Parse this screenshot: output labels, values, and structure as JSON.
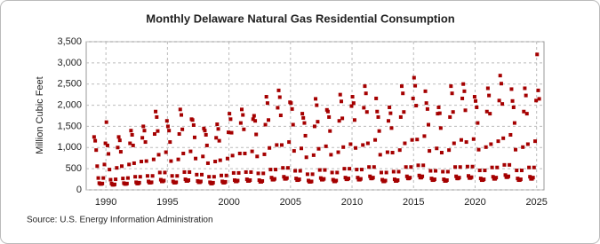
{
  "chart_data": {
    "type": "scatter",
    "title": "Monthly Delaware Natural Gas Residential Consumption",
    "ylabel": "Million Cubic Feet",
    "source": "Source: U.S. Energy Information Administration",
    "color": "#a50000",
    "grid": true,
    "xlim": [
      1988.4,
      2025.6
    ],
    "xticks": [
      1990,
      1995,
      2000,
      2005,
      2010,
      2015,
      2020,
      2025
    ],
    "ylim": [
      0,
      3500
    ],
    "yticks": [
      0,
      500,
      {
        "value": 1000,
        "label": "1,000"
      },
      {
        "value": 1500,
        "label": "1,500"
      },
      {
        "value": 2000,
        "label": "2,000"
      },
      {
        "value": 2500,
        "label": "2,500"
      },
      {
        "value": 3000,
        "label": "3,000"
      },
      {
        "value": 3500,
        "label": "3,500"
      }
    ],
    "x": [
      1989.04,
      1989.13,
      1989.21,
      1989.29,
      1989.38,
      1989.46,
      1989.54,
      1989.63,
      1989.71,
      1989.79,
      1989.88,
      1989.96,
      1990.04,
      1990.13,
      1990.21,
      1990.29,
      1990.38,
      1990.46,
      1990.54,
      1990.63,
      1990.71,
      1990.79,
      1990.88,
      1990.96,
      1991.04,
      1991.13,
      1991.21,
      1991.29,
      1991.38,
      1991.46,
      1991.54,
      1991.63,
      1991.71,
      1991.79,
      1991.88,
      1991.96,
      1992.04,
      1992.13,
      1992.21,
      1992.29,
      1992.38,
      1992.46,
      1992.54,
      1992.63,
      1992.71,
      1992.79,
      1992.88,
      1992.96,
      1993.04,
      1993.13,
      1993.21,
      1993.29,
      1993.38,
      1993.46,
      1993.54,
      1993.63,
      1993.71,
      1993.79,
      1993.88,
      1993.96,
      1994.04,
      1994.13,
      1994.21,
      1994.29,
      1994.38,
      1994.46,
      1994.54,
      1994.63,
      1994.71,
      1994.79,
      1994.88,
      1994.96,
      1995.04,
      1995.13,
      1995.21,
      1995.29,
      1995.38,
      1995.46,
      1995.54,
      1995.63,
      1995.71,
      1995.79,
      1995.88,
      1995.96,
      1996.04,
      1996.13,
      1996.21,
      1996.29,
      1996.38,
      1996.46,
      1996.54,
      1996.63,
      1996.71,
      1996.79,
      1996.88,
      1996.96,
      1997.04,
      1997.13,
      1997.21,
      1997.29,
      1997.38,
      1997.46,
      1997.54,
      1997.63,
      1997.71,
      1997.79,
      1997.88,
      1997.96,
      1998.04,
      1998.13,
      1998.21,
      1998.29,
      1998.38,
      1998.46,
      1998.54,
      1998.63,
      1998.71,
      1998.79,
      1998.88,
      1998.96,
      1999.04,
      1999.13,
      1999.21,
      1999.29,
      1999.38,
      1999.46,
      1999.54,
      1999.63,
      1999.71,
      1999.79,
      1999.88,
      1999.96,
      2000.04,
      2000.13,
      2000.21,
      2000.29,
      2000.38,
      2000.46,
      2000.54,
      2000.63,
      2000.71,
      2000.79,
      2000.88,
      2000.96,
      2001.04,
      2001.13,
      2001.21,
      2001.29,
      2001.38,
      2001.46,
      2001.54,
      2001.63,
      2001.71,
      2001.79,
      2001.88,
      2001.96,
      2002.04,
      2002.13,
      2002.21,
      2002.29,
      2002.38,
      2002.46,
      2002.54,
      2002.63,
      2002.71,
      2002.79,
      2002.88,
      2002.96,
      2003.04,
      2003.13,
      2003.21,
      2003.29,
      2003.38,
      2003.46,
      2003.54,
      2003.63,
      2003.71,
      2003.79,
      2003.88,
      2003.96,
      2004.04,
      2004.13,
      2004.21,
      2004.29,
      2004.38,
      2004.46,
      2004.54,
      2004.63,
      2004.71,
      2004.79,
      2004.88,
      2004.96,
      2005.04,
      2005.13,
      2005.21,
      2005.29,
      2005.38,
      2005.46,
      2005.54,
      2005.63,
      2005.71,
      2005.79,
      2005.88,
      2005.96,
      2006.04,
      2006.13,
      2006.21,
      2006.29,
      2006.38,
      2006.46,
      2006.54,
      2006.63,
      2006.71,
      2006.79,
      2006.88,
      2006.96,
      2007.04,
      2007.13,
      2007.21,
      2007.29,
      2007.38,
      2007.46,
      2007.54,
      2007.63,
      2007.71,
      2007.79,
      2007.88,
      2007.96,
      2008.04,
      2008.13,
      2008.21,
      2008.29,
      2008.38,
      2008.46,
      2008.54,
      2008.63,
      2008.71,
      2008.79,
      2008.88,
      2008.96,
      2009.04,
      2009.13,
      2009.21,
      2009.29,
      2009.38,
      2009.46,
      2009.54,
      2009.63,
      2009.71,
      2009.79,
      2009.88,
      2009.96,
      2010.04,
      2010.13,
      2010.21,
      2010.29,
      2010.38,
      2010.46,
      2010.54,
      2010.63,
      2010.71,
      2010.79,
      2010.88,
      2010.96,
      2011.04,
      2011.13,
      2011.21,
      2011.29,
      2011.38,
      2011.46,
      2011.54,
      2011.63,
      2011.71,
      2011.79,
      2011.88,
      2011.96,
      2012.04,
      2012.13,
      2012.21,
      2012.29,
      2012.38,
      2012.46,
      2012.54,
      2012.63,
      2012.71,
      2012.79,
      2012.88,
      2012.96,
      2013.04,
      2013.13,
      2013.21,
      2013.29,
      2013.38,
      2013.46,
      2013.54,
      2013.63,
      2013.71,
      2013.79,
      2013.88,
      2013.96,
      2014.04,
      2014.13,
      2014.21,
      2014.29,
      2014.38,
      2014.46,
      2014.54,
      2014.63,
      2014.71,
      2014.79,
      2014.88,
      2014.96,
      2015.04,
      2015.13,
      2015.21,
      2015.29,
      2015.38,
      2015.46,
      2015.54,
      2015.63,
      2015.71,
      2015.79,
      2015.88,
      2015.96,
      2016.04,
      2016.13,
      2016.21,
      2016.29,
      2016.38,
      2016.46,
      2016.54,
      2016.63,
      2016.71,
      2016.79,
      2016.88,
      2016.96,
      2017.04,
      2017.13,
      2017.21,
      2017.29,
      2017.38,
      2017.46,
      2017.54,
      2017.63,
      2017.71,
      2017.79,
      2017.88,
      2017.96,
      2018.04,
      2018.13,
      2018.21,
      2018.29,
      2018.38,
      2018.46,
      2018.54,
      2018.63,
      2018.71,
      2018.79,
      2018.88,
      2018.96,
      2019.04,
      2019.13,
      2019.21,
      2019.29,
      2019.38,
      2019.46,
      2019.54,
      2019.63,
      2019.71,
      2019.79,
      2019.88,
      2019.96,
      2020.04,
      2020.13,
      2020.21,
      2020.29,
      2020.38,
      2020.46,
      2020.54,
      2020.63,
      2020.71,
      2020.79,
      2020.88,
      2020.96,
      2021.04,
      2021.13,
      2021.21,
      2021.29,
      2021.38,
      2021.46,
      2021.54,
      2021.63,
      2021.71,
      2021.79,
      2021.88,
      2021.96,
      2022.04,
      2022.13,
      2022.21,
      2022.29,
      2022.38,
      2022.46,
      2022.54,
      2022.63,
      2022.71,
      2022.79,
      2022.88,
      2022.96,
      2023.04,
      2023.13,
      2023.21,
      2023.29,
      2023.38,
      2023.46,
      2023.54,
      2023.63,
      2023.71,
      2023.79,
      2023.88,
      2023.96,
      2024.04,
      2024.13,
      2024.21,
      2024.29,
      2024.38,
      2024.46,
      2024.54,
      2024.63,
      2024.71,
      2024.79,
      2024.88,
      2024.96,
      2025.04,
      2025.13,
      2025.21
    ],
    "values": [
      1250,
      1160,
      940,
      560,
      280,
      160,
      140,
      140,
      150,
      280,
      600,
      1100,
      1600,
      1050,
      850,
      480,
      240,
      150,
      120,
      120,
      130,
      250,
      520,
      1000,
      1250,
      1170,
      900,
      560,
      270,
      160,
      140,
      140,
      150,
      280,
      600,
      1100,
      1400,
      1300,
      1050,
      630,
      310,
      180,
      150,
      150,
      170,
      310,
      670,
      1230,
      1500,
      1400,
      1130,
      680,
      330,
      200,
      170,
      170,
      180,
      330,
      720,
      1320,
      1850,
      1720,
      1390,
      830,
      410,
      240,
      200,
      200,
      220,
      410,
      890,
      1630,
      1500,
      1400,
      1130,
      680,
      330,
      200,
      170,
      170,
      180,
      330,
      720,
      1320,
      1900,
      1770,
      1430,
      860,
      420,
      250,
      210,
      210,
      230,
      420,
      910,
      1670,
      1650,
      1530,
      1240,
      740,
      360,
      210,
      180,
      180,
      200,
      360,
      790,
      1450,
      1400,
      1300,
      1050,
      630,
      310,
      180,
      150,
      150,
      170,
      310,
      670,
      1230,
      1550,
      1440,
      1160,
      700,
      340,
      200,
      170,
      170,
      190,
      340,
      740,
      1360,
      1800,
      1670,
      1350,
      810,
      400,
      230,
      200,
      200,
      220,
      400,
      860,
      1580,
      1900,
      1770,
      1430,
      860,
      420,
      250,
      210,
      210,
      230,
      420,
      910,
      1670,
      1750,
      1630,
      1310,
      790,
      390,
      230,
      190,
      190,
      210,
      390,
      840,
      1540,
      2200,
      2050,
      1650,
      990,
      480,
      290,
      240,
      240,
      260,
      480,
      1060,
      1940,
      2350,
      2190,
      1760,
      1060,
      520,
      310,
      260,
      260,
      280,
      520,
      1130,
      2070,
      2050,
      1910,
      1540,
      920,
      450,
      270,
      230,
      230,
      250,
      450,
      980,
      1800,
      1700,
      1580,
      1280,
      770,
      370,
      220,
      190,
      190,
      200,
      370,
      820,
      1500,
      2150,
      2000,
      1610,
      970,
      470,
      280,
      240,
      240,
      260,
      470,
      1030,
      1890,
      1850,
      1720,
      1390,
      830,
      410,
      240,
      200,
      200,
      220,
      410,
      890,
      1630,
      2250,
      2090,
      1690,
      1010,
      500,
      290,
      250,
      250,
      270,
      500,
      1080,
      1980,
      2200,
      2050,
      1650,
      990,
      480,
      290,
      240,
      240,
      260,
      480,
      1060,
      1940,
      2450,
      2280,
      1840,
      1100,
      540,
      320,
      270,
      270,
      290,
      540,
      1180,
      2160,
      1850,
      1720,
      1390,
      830,
      410,
      240,
      200,
      200,
      220,
      410,
      890,
      1630,
      1950,
      1810,
      1460,
      880,
      430,
      250,
      210,
      210,
      230,
      430,
      940,
      1720,
      2450,
      2280,
      1840,
      1100,
      540,
      320,
      270,
      270,
      290,
      540,
      1180,
      2160,
      2650,
      2460,
      1990,
      1190,
      580,
      340,
      290,
      290,
      320,
      580,
      1270,
      2330,
      2050,
      1910,
      1540,
      920,
      450,
      270,
      230,
      230,
      250,
      450,
      980,
      1800,
      1950,
      1810,
      1460,
      880,
      430,
      250,
      210,
      210,
      230,
      430,
      940,
      1720,
      2450,
      2280,
      1840,
      1100,
      540,
      320,
      270,
      270,
      290,
      540,
      1180,
      2160,
      2500,
      2330,
      1880,
      1130,
      550,
      330,
      280,
      280,
      300,
      550,
      1200,
      2200,
      2100,
      1950,
      1580,
      950,
      460,
      270,
      230,
      230,
      250,
      460,
      1010,
      1850,
      2400,
      2230,
      1800,
      1080,
      530,
      310,
      260,
      260,
      290,
      530,
      1150,
      2110,
      2700,
      2510,
      2030,
      1220,
      590,
      350,
      300,
      300,
      320,
      590,
      1300,
      2380,
      2100,
      1950,
      1580,
      950,
      460,
      270,
      230,
      230,
      250,
      460,
      1010,
      1850,
      2400,
      2230,
      1800,
      1080,
      530,
      310,
      260,
      260,
      290,
      530,
      1150,
      2110,
      3200,
      2350,
      2150
    ]
  }
}
